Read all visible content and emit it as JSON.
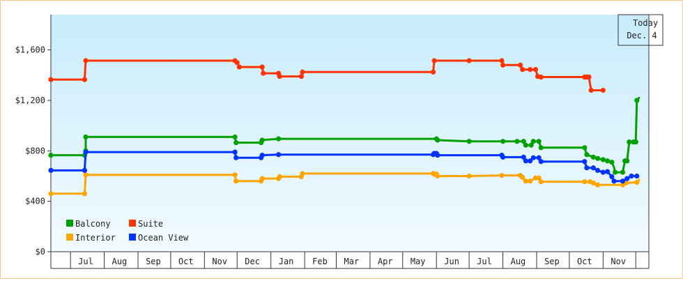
{
  "chart_data": {
    "type": "line",
    "title": "",
    "xlabel": "",
    "ylabel": "",
    "ylim": [
      0,
      1880
    ],
    "xlim": [
      "2023-06-13",
      "2024-12-13"
    ],
    "y_ticks": [
      0,
      400,
      800,
      1200,
      1600
    ],
    "y_tick_labels": [
      "$0",
      "$400",
      "$800",
      "$1,200",
      "$1,600"
    ],
    "x_month_labels": [
      {
        "label": "Jul",
        "date": "2023-07-15"
      },
      {
        "label": "Aug",
        "date": "2023-08-15"
      },
      {
        "label": "Sep",
        "date": "2023-09-15"
      },
      {
        "label": "Oct",
        "date": "2023-10-15"
      },
      {
        "label": "Nov",
        "date": "2023-11-15"
      },
      {
        "label": "Dec",
        "date": "2023-12-15"
      },
      {
        "label": "Jan",
        "date": "2024-01-15"
      },
      {
        "label": "Feb",
        "date": "2024-02-15"
      },
      {
        "label": "Mar",
        "date": "2024-03-15"
      },
      {
        "label": "Apr",
        "date": "2024-04-15"
      },
      {
        "label": "May",
        "date": "2024-05-15"
      },
      {
        "label": "Jun",
        "date": "2024-06-15"
      },
      {
        "label": "Jul",
        "date": "2024-07-15"
      },
      {
        "label": "Aug",
        "date": "2024-08-15"
      },
      {
        "label": "Sep",
        "date": "2024-09-15"
      },
      {
        "label": "Oct",
        "date": "2024-10-15"
      },
      {
        "label": "Nov",
        "date": "2024-11-15"
      }
    ],
    "x_boundaries": [
      "2023-07-01",
      "2023-08-01",
      "2023-09-01",
      "2023-10-01",
      "2023-11-01",
      "2023-12-01",
      "2024-01-01",
      "2024-02-01",
      "2024-03-01",
      "2024-04-01",
      "2024-05-01",
      "2024-06-01",
      "2024-07-01",
      "2024-08-01",
      "2024-09-01",
      "2024-10-01",
      "2024-11-01",
      "2024-12-01"
    ],
    "today": {
      "line1": "Today",
      "line2": "Dec. 4",
      "date": "2024-12-04"
    },
    "grid": false,
    "legend_position": "bottom-left",
    "series": [
      {
        "name": "Balcony",
        "color": "#00a000",
        "points": [
          [
            "2023-06-13",
            765
          ],
          [
            "2023-07-14",
            765
          ],
          [
            "2023-07-15",
            800
          ],
          [
            "2023-07-15",
            910
          ],
          [
            "2023-11-29",
            910
          ],
          [
            "2023-11-30",
            865
          ],
          [
            "2023-12-23",
            865
          ],
          [
            "2023-12-24",
            885
          ],
          [
            "2024-01-08",
            895
          ],
          [
            "2024-06-01",
            895
          ],
          [
            "2024-06-02",
            885
          ],
          [
            "2024-07-01",
            875
          ],
          [
            "2024-08-01",
            875
          ],
          [
            "2024-08-14",
            875
          ],
          [
            "2024-08-20",
            875
          ],
          [
            "2024-08-22",
            845
          ],
          [
            "2024-08-27",
            845
          ],
          [
            "2024-08-29",
            875
          ],
          [
            "2024-09-03",
            875
          ],
          [
            "2024-09-05",
            825
          ],
          [
            "2024-10-15",
            825
          ],
          [
            "2024-10-17",
            770
          ],
          [
            "2024-10-23",
            750
          ],
          [
            "2024-10-27",
            740
          ],
          [
            "2024-11-01",
            730
          ],
          [
            "2024-11-05",
            720
          ],
          [
            "2024-11-09",
            710
          ],
          [
            "2024-11-11",
            670
          ],
          [
            "2024-11-12",
            630
          ],
          [
            "2024-11-19",
            630
          ],
          [
            "2024-11-21",
            720
          ],
          [
            "2024-11-23",
            720
          ],
          [
            "2024-11-25",
            870
          ],
          [
            "2024-11-29",
            870
          ],
          [
            "2024-12-01",
            870
          ],
          [
            "2024-12-02",
            1200
          ],
          [
            "2024-12-04",
            1220
          ]
        ],
        "markers": [
          "2023-06-13",
          "2023-07-14",
          "2023-07-15",
          "2023-11-29",
          "2023-11-30",
          "2023-12-23",
          "2023-12-24",
          "2024-01-08",
          "2024-06-01",
          "2024-06-02",
          "2024-07-01",
          "2024-08-01",
          "2024-08-14",
          "2024-08-20",
          "2024-08-22",
          "2024-08-27",
          "2024-08-29",
          "2024-09-03",
          "2024-09-05",
          "2024-10-15",
          "2024-10-17",
          "2024-10-23",
          "2024-10-27",
          "2024-11-01",
          "2024-11-05",
          "2024-11-09",
          "2024-11-12",
          "2024-11-19",
          "2024-11-21",
          "2024-11-23",
          "2024-11-25",
          "2024-11-29",
          "2024-12-01",
          "2024-12-02"
        ]
      },
      {
        "name": "Suite",
        "color": "#ff3300",
        "points": [
          [
            "2023-06-13",
            1365
          ],
          [
            "2023-07-14",
            1365
          ],
          [
            "2023-07-15",
            1515
          ],
          [
            "2023-11-29",
            1515
          ],
          [
            "2023-12-01",
            1500
          ],
          [
            "2023-12-03",
            1465
          ],
          [
            "2023-12-24",
            1465
          ],
          [
            "2023-12-25",
            1415
          ],
          [
            "2024-01-08",
            1415
          ],
          [
            "2024-01-09",
            1390
          ],
          [
            "2024-01-29",
            1390
          ],
          [
            "2024-01-30",
            1425
          ],
          [
            "2024-05-29",
            1425
          ],
          [
            "2024-05-30",
            1515
          ],
          [
            "2024-07-01",
            1515
          ],
          [
            "2024-07-31",
            1515
          ],
          [
            "2024-08-01",
            1480
          ],
          [
            "2024-08-17",
            1480
          ],
          [
            "2024-08-19",
            1445
          ],
          [
            "2024-08-26",
            1445
          ],
          [
            "2024-08-31",
            1445
          ],
          [
            "2024-09-02",
            1390
          ],
          [
            "2024-09-05",
            1385
          ],
          [
            "2024-10-15",
            1385
          ],
          [
            "2024-10-17",
            1385
          ],
          [
            "2024-10-19",
            1385
          ],
          [
            "2024-10-21",
            1280
          ],
          [
            "2024-11-01",
            1280
          ]
        ],
        "markers": [
          "2023-06-13",
          "2023-07-14",
          "2023-07-15",
          "2023-11-29",
          "2023-12-01",
          "2023-12-03",
          "2023-12-24",
          "2023-12-25",
          "2024-01-08",
          "2024-01-09",
          "2024-01-29",
          "2024-01-30",
          "2024-05-29",
          "2024-05-30",
          "2024-07-01",
          "2024-07-31",
          "2024-08-01",
          "2024-08-17",
          "2024-08-19",
          "2024-08-26",
          "2024-08-31",
          "2024-09-02",
          "2024-09-05",
          "2024-10-15",
          "2024-10-17",
          "2024-10-19",
          "2024-10-21",
          "2024-11-01"
        ]
      },
      {
        "name": "Interior",
        "color": "#ffa500",
        "points": [
          [
            "2023-06-13",
            460
          ],
          [
            "2023-07-14",
            460
          ],
          [
            "2023-07-15",
            610
          ],
          [
            "2023-11-29",
            610
          ],
          [
            "2023-11-30",
            560
          ],
          [
            "2023-12-23",
            560
          ],
          [
            "2023-12-24",
            580
          ],
          [
            "2024-01-08",
            580
          ],
          [
            "2024-01-09",
            595
          ],
          [
            "2024-01-29",
            595
          ],
          [
            "2024-01-30",
            620
          ],
          [
            "2024-05-29",
            620
          ],
          [
            "2024-05-30",
            615
          ],
          [
            "2024-06-01",
            615
          ],
          [
            "2024-06-02",
            600
          ],
          [
            "2024-07-01",
            600
          ],
          [
            "2024-07-31",
            605
          ],
          [
            "2024-08-17",
            605
          ],
          [
            "2024-08-19",
            590
          ],
          [
            "2024-08-22",
            560
          ],
          [
            "2024-08-26",
            560
          ],
          [
            "2024-08-31",
            585
          ],
          [
            "2024-09-03",
            585
          ],
          [
            "2024-09-05",
            555
          ],
          [
            "2024-10-15",
            555
          ],
          [
            "2024-10-20",
            555
          ],
          [
            "2024-10-23",
            545
          ],
          [
            "2024-10-27",
            530
          ],
          [
            "2024-11-19",
            530
          ],
          [
            "2024-11-22",
            545
          ],
          [
            "2024-12-02",
            550
          ],
          [
            "2024-12-04",
            570
          ]
        ],
        "markers": [
          "2023-06-13",
          "2023-07-14",
          "2023-07-15",
          "2023-11-29",
          "2023-11-30",
          "2023-12-23",
          "2023-12-24",
          "2024-01-08",
          "2024-01-09",
          "2024-01-29",
          "2024-01-30",
          "2024-05-29",
          "2024-05-30",
          "2024-06-01",
          "2024-06-02",
          "2024-07-01",
          "2024-07-31",
          "2024-08-17",
          "2024-08-19",
          "2024-08-22",
          "2024-08-26",
          "2024-08-31",
          "2024-09-03",
          "2024-09-05",
          "2024-10-15",
          "2024-10-20",
          "2024-10-23",
          "2024-10-27",
          "2024-11-19",
          "2024-11-22",
          "2024-12-02"
        ]
      },
      {
        "name": "Ocean View",
        "color": "#0033ff",
        "points": [
          [
            "2023-06-13",
            645
          ],
          [
            "2023-07-14",
            645
          ],
          [
            "2023-07-15",
            790
          ],
          [
            "2023-11-29",
            790
          ],
          [
            "2023-11-30",
            745
          ],
          [
            "2023-12-23",
            745
          ],
          [
            "2023-12-24",
            765
          ],
          [
            "2024-01-08",
            770
          ],
          [
            "2024-05-29",
            770
          ],
          [
            "2024-05-30",
            780
          ],
          [
            "2024-06-01",
            780
          ],
          [
            "2024-06-02",
            765
          ],
          [
            "2024-07-31",
            765
          ],
          [
            "2024-08-01",
            750
          ],
          [
            "2024-08-20",
            750
          ],
          [
            "2024-08-22",
            720
          ],
          [
            "2024-08-26",
            720
          ],
          [
            "2024-08-29",
            745
          ],
          [
            "2024-09-03",
            745
          ],
          [
            "2024-09-05",
            715
          ],
          [
            "2024-10-15",
            715
          ],
          [
            "2024-10-17",
            665
          ],
          [
            "2024-10-23",
            665
          ],
          [
            "2024-10-27",
            645
          ],
          [
            "2024-11-01",
            630
          ],
          [
            "2024-11-05",
            635
          ],
          [
            "2024-11-09",
            595
          ],
          [
            "2024-11-11",
            560
          ],
          [
            "2024-11-19",
            560
          ],
          [
            "2024-11-23",
            580
          ],
          [
            "2024-11-27",
            600
          ],
          [
            "2024-12-02",
            600
          ]
        ],
        "markers": [
          "2023-06-13",
          "2023-07-14",
          "2023-07-15",
          "2023-11-29",
          "2023-11-30",
          "2023-12-23",
          "2023-12-24",
          "2024-01-08",
          "2024-05-29",
          "2024-05-30",
          "2024-06-01",
          "2024-06-02",
          "2024-07-31",
          "2024-08-01",
          "2024-08-20",
          "2024-08-22",
          "2024-08-26",
          "2024-08-29",
          "2024-09-03",
          "2024-09-05",
          "2024-10-15",
          "2024-10-17",
          "2024-10-23",
          "2024-10-27",
          "2024-11-01",
          "2024-11-05",
          "2024-11-09",
          "2024-11-11",
          "2024-11-19",
          "2024-11-23",
          "2024-11-27",
          "2024-12-02"
        ]
      }
    ]
  }
}
